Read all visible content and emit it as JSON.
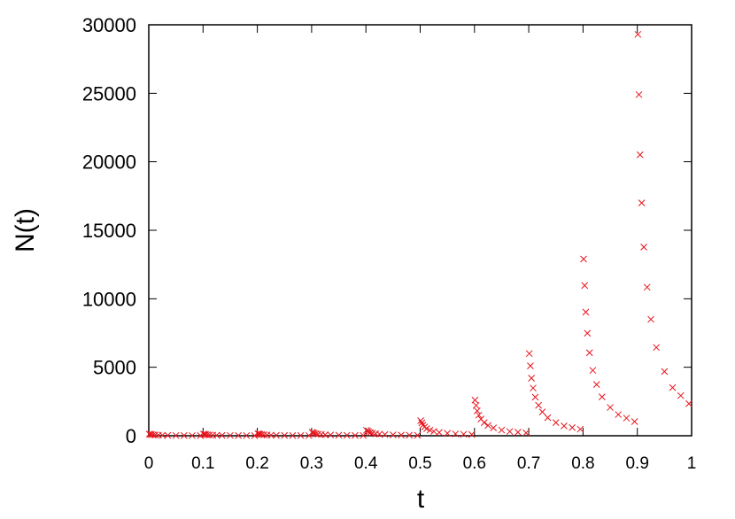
{
  "chart_data": {
    "type": "scatter",
    "x_label": "t",
    "y_label": "N(t)",
    "series": [
      {
        "color": "#e8141c",
        "marker": "x",
        "x": [
          0.001,
          0.003,
          0.005,
          0.008,
          0.012,
          0.018,
          0.025,
          0.035,
          0.05,
          0.065,
          0.08,
          0.095,
          0.101,
          0.103,
          0.105,
          0.108,
          0.112,
          0.118,
          0.125,
          0.135,
          0.15,
          0.165,
          0.18,
          0.195,
          0.201,
          0.203,
          0.205,
          0.208,
          0.212,
          0.218,
          0.225,
          0.235,
          0.25,
          0.265,
          0.28,
          0.295,
          0.301,
          0.303,
          0.305,
          0.308,
          0.312,
          0.318,
          0.325,
          0.335,
          0.35,
          0.365,
          0.38,
          0.395,
          0.401,
          0.403,
          0.405,
          0.408,
          0.412,
          0.418,
          0.425,
          0.435,
          0.45,
          0.465,
          0.48,
          0.495,
          0.501,
          0.503,
          0.505,
          0.508,
          0.512,
          0.518,
          0.525,
          0.535,
          0.55,
          0.565,
          0.58,
          0.595,
          0.601,
          0.603,
          0.605,
          0.608,
          0.612,
          0.618,
          0.625,
          0.635,
          0.65,
          0.665,
          0.68,
          0.695,
          0.701,
          0.703,
          0.705,
          0.708,
          0.712,
          0.718,
          0.725,
          0.735,
          0.75,
          0.765,
          0.78,
          0.795,
          0.801,
          0.803,
          0.805,
          0.808,
          0.812,
          0.818,
          0.825,
          0.835,
          0.85,
          0.865,
          0.88,
          0.895,
          0.901,
          0.903,
          0.905,
          0.908,
          0.912,
          0.918,
          0.925,
          0.935,
          0.95,
          0.965,
          0.98,
          0.995
        ],
        "values": [
          120,
          102,
          84,
          70,
          56,
          44,
          35,
          26,
          19,
          14,
          12,
          10,
          120,
          102,
          84,
          70,
          56,
          44,
          35,
          26,
          19,
          14,
          12,
          10,
          150,
          128,
          105,
          87,
          71,
          56,
          44,
          33,
          24,
          18,
          15,
          12,
          250,
          213,
          175,
          145,
          118,
          93,
          73,
          55,
          40,
          30,
          25,
          20,
          400,
          340,
          280,
          232,
          188,
          148,
          116,
          88,
          64,
          48,
          40,
          32,
          1100,
          935,
          770,
          638,
          517,
          407,
          319,
          242,
          176,
          132,
          110,
          88,
          2600,
          2210,
          1820,
          1508,
          1222,
          962,
          754,
          572,
          416,
          312,
          260,
          208,
          6000,
          5100,
          4200,
          3480,
          2820,
          2220,
          1740,
          1320,
          960,
          720,
          600,
          480,
          12900,
          10965,
          9030,
          7482,
          6063,
          4773,
          3741,
          2838,
          2064,
          1548,
          1290,
          1032,
          29300,
          24905,
          20510,
          16994,
          13771,
          10841,
          8497,
          6446,
          4688,
          3516,
          2930,
          2344
        ]
      }
    ],
    "xlim": [
      0,
      1
    ],
    "xticks": [
      0,
      0.1,
      0.2,
      0.3,
      0.4,
      0.5,
      0.6,
      0.7,
      0.8,
      0.9,
      1
    ],
    "ylim": [
      0,
      30000
    ],
    "yticks": [
      0,
      5000,
      10000,
      15000,
      20000,
      25000,
      30000
    ]
  }
}
